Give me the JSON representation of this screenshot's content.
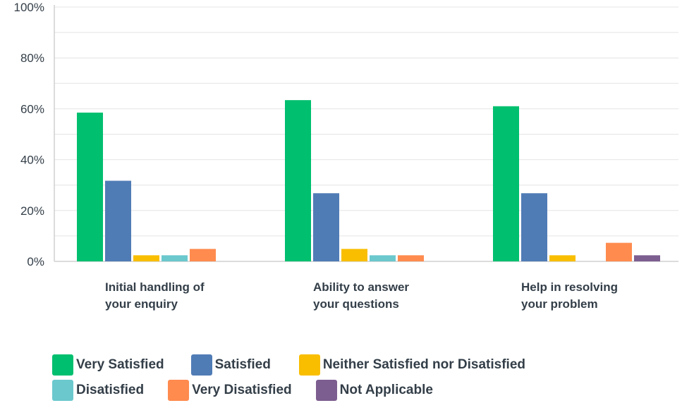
{
  "chart_data": {
    "type": "bar",
    "categories": [
      [
        "Initial handling of",
        "your enquiry"
      ],
      [
        "Ability to answer",
        "your questions"
      ],
      [
        "Help in resolving",
        "your problem"
      ]
    ],
    "ylim": [
      0,
      100
    ],
    "yticks": [
      "0%",
      "20%",
      "40%",
      "60%",
      "80%",
      "100%"
    ],
    "ytick_values": [
      0,
      20,
      40,
      60,
      80,
      100
    ],
    "grid": true,
    "legend_position": "bottom",
    "series": [
      {
        "name": "Very Satisfied",
        "color": "#00bf6f",
        "values": [
          58.5,
          63.4,
          61.0
        ]
      },
      {
        "name": "Satisfied",
        "color": "#507cb6",
        "values": [
          31.7,
          26.8,
          26.8
        ]
      },
      {
        "name": "Neither Satisfied nor Disatisfied",
        "color": "#f9be00",
        "values": [
          2.4,
          4.9,
          2.4
        ]
      },
      {
        "name": "Disatisfied",
        "color": "#6bc8cd",
        "values": [
          2.4,
          2.4,
          0
        ]
      },
      {
        "name": "Very Disatisfied",
        "color": "#ff8b4f",
        "values": [
          4.9,
          2.4,
          7.3
        ]
      },
      {
        "name": "Not Applicable",
        "color": "#7d5e90",
        "values": [
          0,
          0,
          2.4
        ]
      }
    ]
  }
}
